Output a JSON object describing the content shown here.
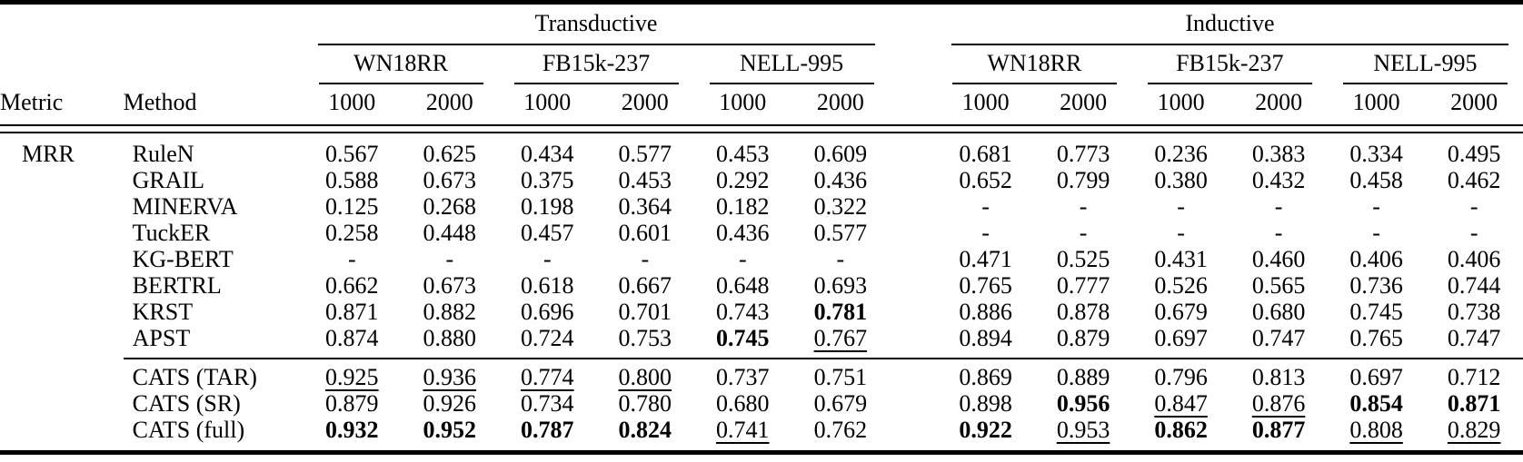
{
  "header": {
    "metric": "Metric",
    "method": "Method",
    "groups": [
      "Transductive",
      "Inductive"
    ],
    "datasets": [
      "WN18RR",
      "FB15k-237",
      "NELL-995"
    ],
    "shots": [
      "1000",
      "2000"
    ]
  },
  "metric_value": "MRR",
  "rows": [
    {
      "method": "RuleN",
      "cells": [
        {
          "v": "0.567"
        },
        {
          "v": "0.625"
        },
        {
          "v": "0.434"
        },
        {
          "v": "0.577"
        },
        {
          "v": "0.453"
        },
        {
          "v": "0.609"
        },
        {
          "v": "0.681"
        },
        {
          "v": "0.773"
        },
        {
          "v": "0.236"
        },
        {
          "v": "0.383"
        },
        {
          "v": "0.334"
        },
        {
          "v": "0.495"
        }
      ]
    },
    {
      "method": "GRAIL",
      "cells": [
        {
          "v": "0.588"
        },
        {
          "v": "0.673"
        },
        {
          "v": "0.375"
        },
        {
          "v": "0.453"
        },
        {
          "v": "0.292"
        },
        {
          "v": "0.436"
        },
        {
          "v": "0.652"
        },
        {
          "v": "0.799"
        },
        {
          "v": "0.380"
        },
        {
          "v": "0.432"
        },
        {
          "v": "0.458"
        },
        {
          "v": "0.462"
        }
      ]
    },
    {
      "method": "MINERVA",
      "cells": [
        {
          "v": "0.125"
        },
        {
          "v": "0.268"
        },
        {
          "v": "0.198"
        },
        {
          "v": "0.364"
        },
        {
          "v": "0.182"
        },
        {
          "v": "0.322"
        },
        {
          "v": "-"
        },
        {
          "v": "-"
        },
        {
          "v": "-"
        },
        {
          "v": "-"
        },
        {
          "v": "-"
        },
        {
          "v": "-"
        }
      ]
    },
    {
      "method": "TuckER",
      "cells": [
        {
          "v": "0.258"
        },
        {
          "v": "0.448"
        },
        {
          "v": "0.457"
        },
        {
          "v": "0.601"
        },
        {
          "v": "0.436"
        },
        {
          "v": "0.577"
        },
        {
          "v": "-"
        },
        {
          "v": "-"
        },
        {
          "v": "-"
        },
        {
          "v": "-"
        },
        {
          "v": "-"
        },
        {
          "v": "-"
        }
      ]
    },
    {
      "method": "KG-BERT",
      "cells": [
        {
          "v": "-"
        },
        {
          "v": "-"
        },
        {
          "v": "-"
        },
        {
          "v": "-"
        },
        {
          "v": "-"
        },
        {
          "v": "-"
        },
        {
          "v": "0.471"
        },
        {
          "v": "0.525"
        },
        {
          "v": "0.431"
        },
        {
          "v": "0.460"
        },
        {
          "v": "0.406"
        },
        {
          "v": "0.406"
        }
      ]
    },
    {
      "method": "BERTRL",
      "cells": [
        {
          "v": "0.662"
        },
        {
          "v": "0.673"
        },
        {
          "v": "0.618"
        },
        {
          "v": "0.667"
        },
        {
          "v": "0.648"
        },
        {
          "v": "0.693"
        },
        {
          "v": "0.765"
        },
        {
          "v": "0.777"
        },
        {
          "v": "0.526"
        },
        {
          "v": "0.565"
        },
        {
          "v": "0.736"
        },
        {
          "v": "0.744"
        }
      ]
    },
    {
      "method": "KRST",
      "cells": [
        {
          "v": "0.871"
        },
        {
          "v": "0.882"
        },
        {
          "v": "0.696"
        },
        {
          "v": "0.701"
        },
        {
          "v": "0.743"
        },
        {
          "v": "0.781",
          "f": "b"
        },
        {
          "v": "0.886"
        },
        {
          "v": "0.878"
        },
        {
          "v": "0.679"
        },
        {
          "v": "0.680"
        },
        {
          "v": "0.745"
        },
        {
          "v": "0.738"
        }
      ]
    },
    {
      "method": "APST",
      "cells": [
        {
          "v": "0.874"
        },
        {
          "v": "0.880"
        },
        {
          "v": "0.724"
        },
        {
          "v": "0.753"
        },
        {
          "v": "0.745",
          "f": "b"
        },
        {
          "v": "0.767",
          "f": "u"
        },
        {
          "v": "0.894"
        },
        {
          "v": "0.879"
        },
        {
          "v": "0.697"
        },
        {
          "v": "0.747"
        },
        {
          "v": "0.765"
        },
        {
          "v": "0.747"
        }
      ]
    },
    {
      "method": "CATS (TAR)",
      "cells": [
        {
          "v": "0.925",
          "f": "u"
        },
        {
          "v": "0.936",
          "f": "u"
        },
        {
          "v": "0.774",
          "f": "u"
        },
        {
          "v": "0.800",
          "f": "u"
        },
        {
          "v": "0.737"
        },
        {
          "v": "0.751"
        },
        {
          "v": "0.869"
        },
        {
          "v": "0.889"
        },
        {
          "v": "0.796"
        },
        {
          "v": "0.813"
        },
        {
          "v": "0.697"
        },
        {
          "v": "0.712"
        }
      ]
    },
    {
      "method": "CATS (SR)",
      "cells": [
        {
          "v": "0.879"
        },
        {
          "v": "0.926"
        },
        {
          "v": "0.734"
        },
        {
          "v": "0.780"
        },
        {
          "v": "0.680"
        },
        {
          "v": "0.679"
        },
        {
          "v": "0.898"
        },
        {
          "v": "0.956",
          "f": "b"
        },
        {
          "v": "0.847",
          "f": "u"
        },
        {
          "v": "0.876",
          "f": "u"
        },
        {
          "v": "0.854",
          "f": "b"
        },
        {
          "v": "0.871",
          "f": "b"
        }
      ]
    },
    {
      "method": "CATS (full)",
      "cells": [
        {
          "v": "0.932",
          "f": "b"
        },
        {
          "v": "0.952",
          "f": "b"
        },
        {
          "v": "0.787",
          "f": "b"
        },
        {
          "v": "0.824",
          "f": "b"
        },
        {
          "v": "0.741",
          "f": "u"
        },
        {
          "v": "0.762"
        },
        {
          "v": "0.922",
          "f": "b"
        },
        {
          "v": "0.953",
          "f": "u"
        },
        {
          "v": "0.862",
          "f": "b"
        },
        {
          "v": "0.877",
          "f": "b"
        },
        {
          "v": "0.808",
          "f": "u"
        },
        {
          "v": "0.829",
          "f": "u"
        }
      ]
    }
  ]
}
